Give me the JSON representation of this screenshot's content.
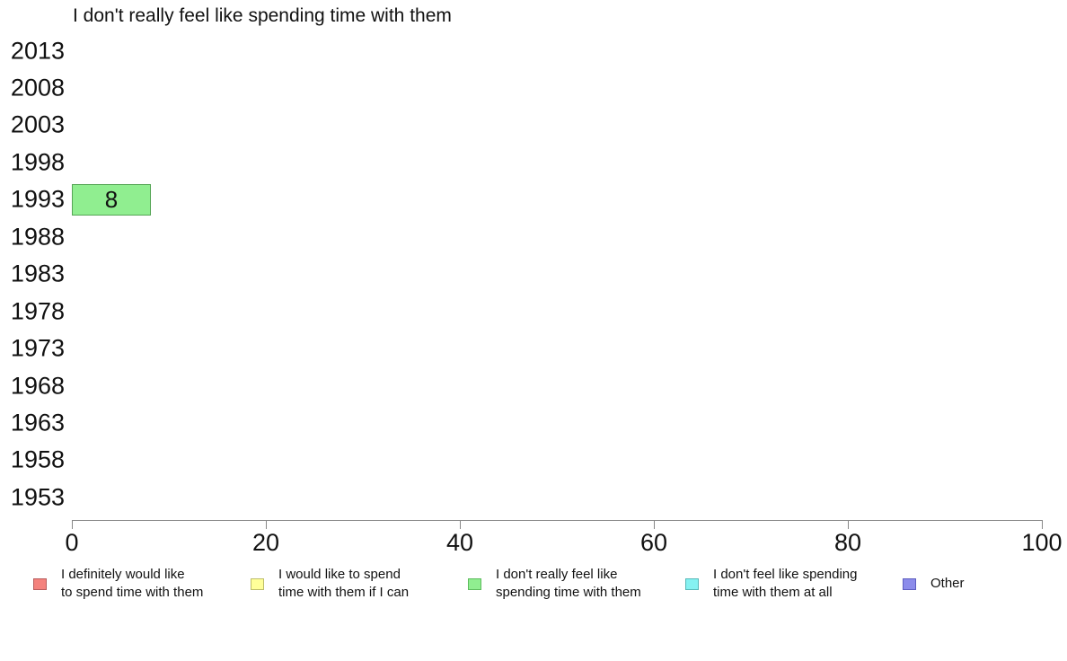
{
  "chart_data": {
    "type": "bar",
    "orientation": "horizontal",
    "title": "I don't really feel like spending time with them",
    "categories": [
      "2013",
      "2008",
      "2003",
      "1998",
      "1993",
      "1988",
      "1983",
      "1978",
      "1973",
      "1968",
      "1963",
      "1958",
      "1953"
    ],
    "values": [
      null,
      null,
      null,
      null,
      8,
      null,
      null,
      null,
      null,
      null,
      null,
      null,
      null
    ],
    "xlim": [
      0,
      100
    ],
    "x_ticks": [
      0,
      20,
      40,
      60,
      80,
      100
    ],
    "grid": false,
    "legend_position": "bottom",
    "series_color": "#90EE90",
    "series_border_color": "#55A555",
    "axis_color": "#888888",
    "legend": [
      {
        "label_lines": [
          "I definitely would like",
          "to spend time with them"
        ],
        "color": "#F4827D",
        "border": "#B85C5C"
      },
      {
        "label_lines": [
          "I would like to spend",
          "time with them if I can"
        ],
        "color": "#FFFF99",
        "border": "#BDBD6B"
      },
      {
        "label_lines": [
          "I don't really feel like",
          "spending time with them"
        ],
        "color": "#90EE90",
        "border": "#5DBB5D"
      },
      {
        "label_lines": [
          "I don't feel like spending",
          "time with them at all"
        ],
        "color": "#85F2F2",
        "border": "#58B8B8"
      },
      {
        "label_lines": [
          "Other"
        ],
        "color": "#8C8CEB",
        "border": "#5E5EC0"
      }
    ]
  }
}
